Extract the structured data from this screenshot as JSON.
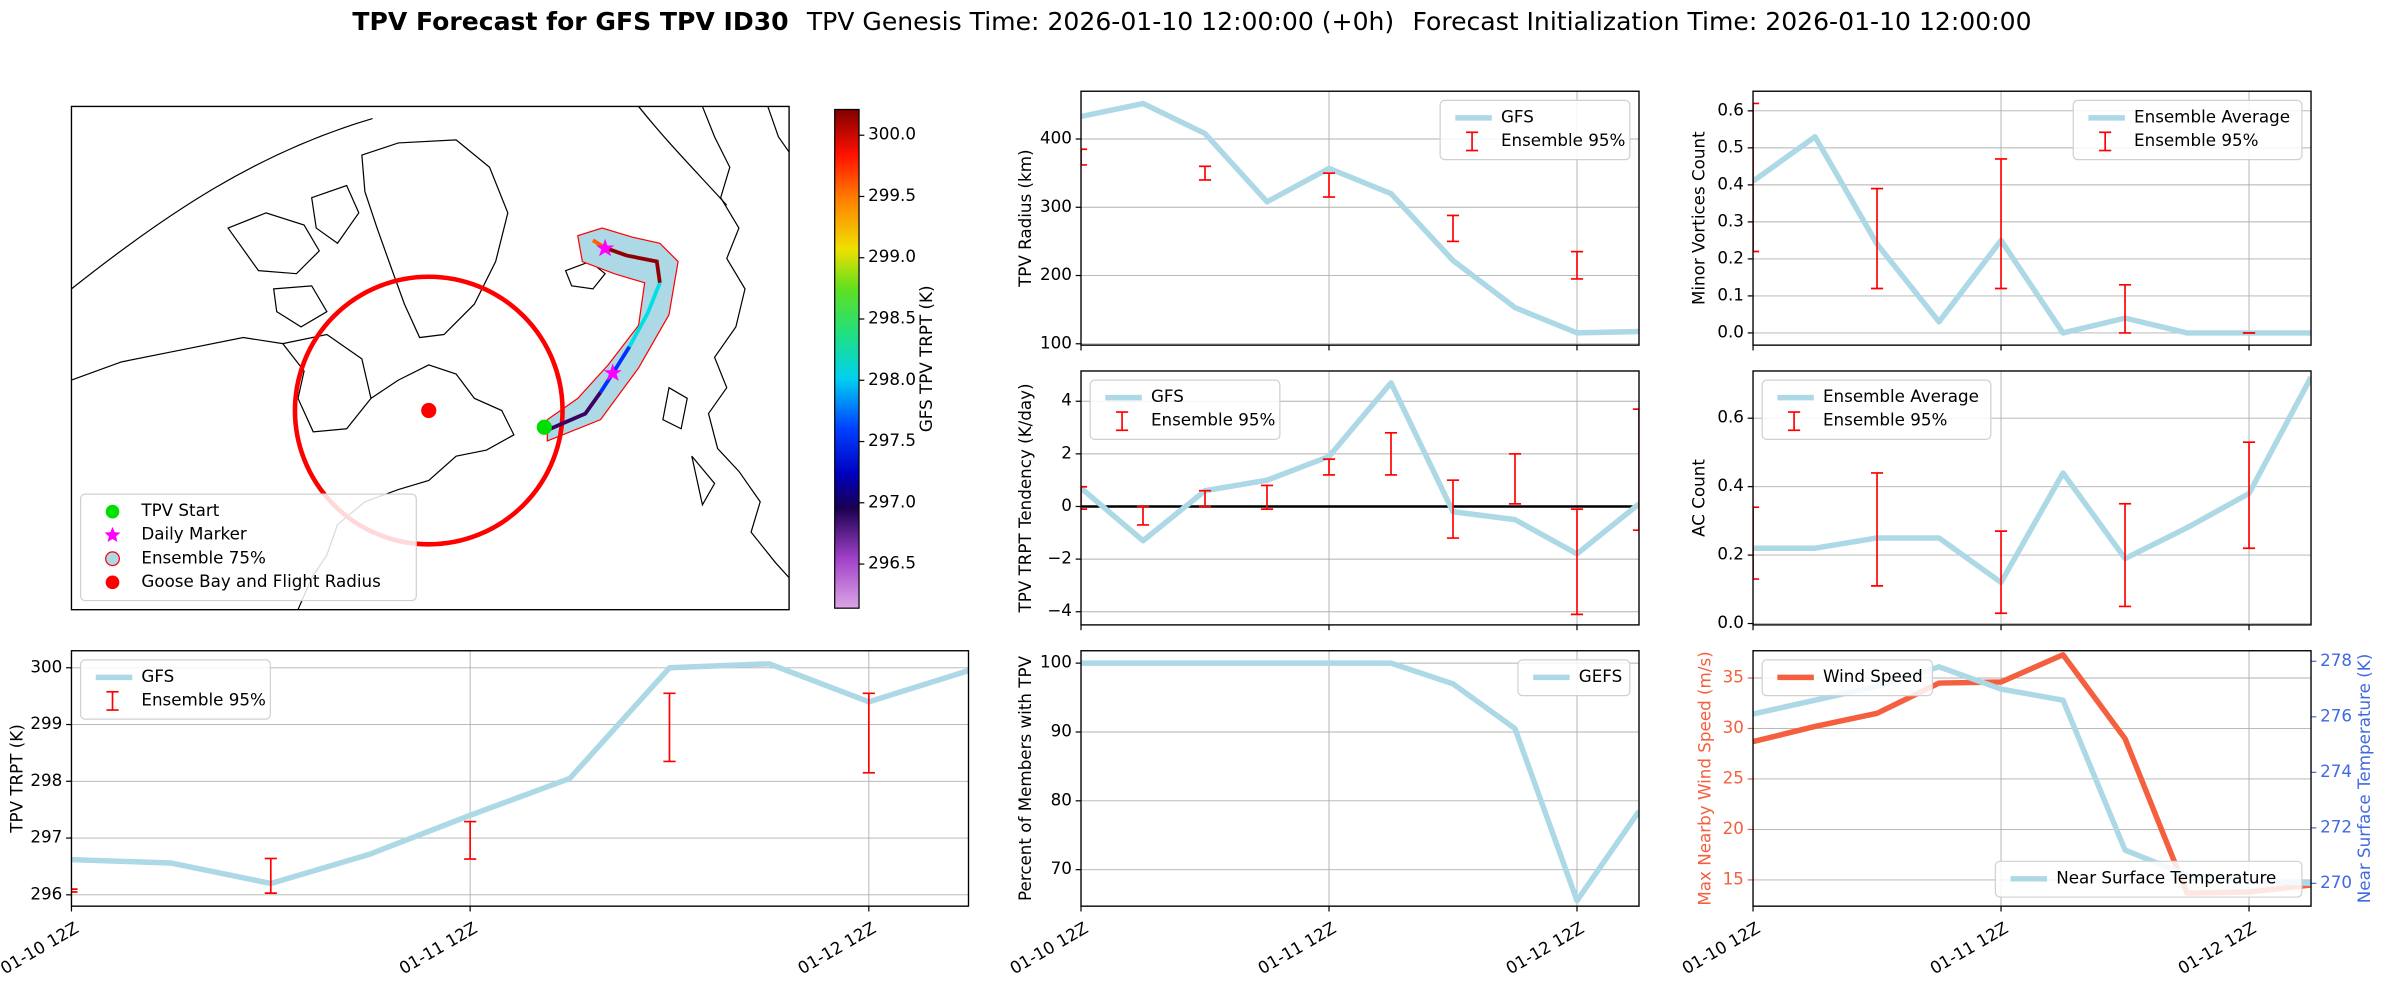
{
  "suptitle": [
    "TPV Forecast for GFS TPV ID30",
    "TPV Genesis Time: 2026-01-10 12:00:00 (+0h)",
    "Forecast Initialization Time: 2026-01-10 12:00:00"
  ],
  "chart_data": [
    {
      "type": "map",
      "legend": "lower left",
      "legend_entries": [
        {
          "name": "TPV Start",
          "color": "#00e000",
          "marker": "circle"
        },
        {
          "name": "Daily Marker",
          "color": "#ff00ff",
          "marker": "star"
        },
        {
          "name": "Ensemble 75%",
          "color": "#add8e6",
          "marker": "patch"
        },
        {
          "name": "Goose Bay and Flight Radius",
          "color": "#ff0000",
          "marker": "circle"
        }
      ],
      "colorbar": {
        "label": "GFS TPV TRPT (K)",
        "lim": [
          296.14,
          300.21
        ],
        "ticks": [
          296.5,
          {
            "value": 297,
            "label": "297.0"
          },
          297.5,
          {
            "value": 298,
            "label": "298.0"
          },
          298.5,
          {
            "value": 299,
            "label": "299.0"
          },
          299.5,
          {
            "value": 300,
            "label": "300.0"
          }
        ]
      }
    },
    {
      "type": "line",
      "ylabel": "TPV Radius (km)",
      "xlim": [
        0,
        54
      ],
      "xticks": [
        0,
        24,
        48
      ],
      "ylim": [
        98,
        470
      ],
      "yticks": [
        100,
        200,
        300,
        400
      ],
      "grid": true,
      "legend": "upper right",
      "series": [
        {
          "name": "GFS",
          "color": "#add8e6",
          "x": [
            0,
            6,
            12,
            18,
            24,
            30,
            36,
            42,
            48,
            54
          ],
          "values": [
            433,
            452,
            408,
            308,
            357,
            320,
            222,
            153,
            116,
            118
          ]
        },
        {
          "name": "Ensemble 95%",
          "type": "errorbar",
          "color": "#ff0000",
          "x": [
            0,
            12,
            24,
            36,
            48
          ],
          "low": [
            362,
            340,
            315,
            250,
            195
          ],
          "high": [
            385,
            360,
            350,
            288,
            235
          ]
        }
      ]
    },
    {
      "type": "line",
      "ylabel": "Minor Vortices Count",
      "xlim": [
        0,
        54
      ],
      "xticks": [
        0,
        24,
        48
      ],
      "ylim": [
        -0.033,
        0.653
      ],
      "yticks": [
        {
          "value": 0,
          "label": "0.0"
        },
        0.1,
        0.2,
        0.3,
        0.4,
        0.5,
        0.6
      ],
      "grid": true,
      "legend": "upper right",
      "series": [
        {
          "name": "Ensemble Average",
          "color": "#add8e6",
          "x": [
            0,
            6,
            12,
            18,
            24,
            30,
            36,
            42,
            48,
            54
          ],
          "values": [
            0.41,
            0.53,
            0.24,
            0.03,
            0.25,
            0.0,
            0.04,
            0.0,
            0.0,
            0.0
          ]
        },
        {
          "name": "Ensemble 95%",
          "type": "errorbar",
          "color": "#ff0000",
          "x": [
            0,
            12,
            24,
            36,
            48
          ],
          "low": [
            0.22,
            0.12,
            0.12,
            0.0,
            0.0
          ],
          "high": [
            0.62,
            0.39,
            0.47,
            0.13,
            0.0
          ]
        }
      ]
    },
    {
      "type": "line",
      "ylabel": "TPV TRPT Tendency (K/day)",
      "xlim": [
        0,
        54
      ],
      "xticks": [
        0,
        24,
        48
      ],
      "ylim": [
        -4.5,
        5.15
      ],
      "yticks": [
        {
          "value": -4,
          "label": "−4"
        },
        {
          "value": -2,
          "label": "−2"
        },
        0,
        2,
        4
      ],
      "grid": true,
      "legend": "upper left",
      "hline": {
        "value": 0,
        "color": "#000000"
      },
      "series": [
        {
          "name": "GFS",
          "color": "#add8e6",
          "x": [
            0,
            6,
            12,
            18,
            24,
            30,
            36,
            42,
            48,
            54
          ],
          "values": [
            0.7,
            -1.3,
            0.6,
            1.0,
            1.9,
            4.7,
            -0.2,
            -0.5,
            -1.8,
            0.1
          ]
        },
        {
          "name": "Ensemble 95%",
          "type": "errorbar",
          "color": "#ff0000",
          "x": [
            0,
            6,
            12,
            18,
            24,
            30,
            36,
            42,
            48,
            54
          ],
          "low": [
            -0.1,
            -0.7,
            0.0,
            -0.1,
            1.2,
            1.2,
            -1.2,
            0.1,
            -4.1,
            -0.9
          ],
          "high": [
            0.75,
            0.0,
            0.6,
            0.8,
            1.8,
            2.8,
            1.0,
            2.0,
            -0.1,
            3.7
          ]
        }
      ]
    },
    {
      "type": "line",
      "ylabel": "AC Count",
      "xlim": [
        0,
        54
      ],
      "xticks": [
        0,
        24,
        48
      ],
      "ylim": [
        -0.004,
        0.738
      ],
      "yticks": [
        {
          "value": 0,
          "label": "0.0"
        },
        0.2,
        0.4,
        0.6
      ],
      "grid": true,
      "legend": "upper left",
      "series": [
        {
          "name": "Ensemble Average",
          "color": "#add8e6",
          "x": [
            0,
            6,
            12,
            18,
            24,
            30,
            36,
            42,
            48,
            54
          ],
          "values": [
            0.22,
            0.22,
            0.25,
            0.25,
            0.12,
            0.44,
            0.19,
            0.28,
            0.38,
            0.72
          ]
        },
        {
          "name": "Ensemble 95%",
          "type": "errorbar",
          "color": "#ff0000",
          "x": [
            0,
            12,
            24,
            36,
            48
          ],
          "low": [
            0.13,
            0.11,
            0.03,
            0.05,
            0.22
          ],
          "high": [
            0.34,
            0.44,
            0.27,
            0.35,
            0.53
          ]
        }
      ]
    },
    {
      "type": "line",
      "ylabel": "TPV TRPT (K)",
      "xlim": [
        0,
        54
      ],
      "xticks": [
        {
          "value": 0,
          "label": "01-10 12Z"
        },
        {
          "value": 24,
          "label": "01-11 12Z"
        },
        {
          "value": 48,
          "label": "01-12 12Z"
        }
      ],
      "ylim": [
        295.8,
        300.3
      ],
      "yticks": [
        296,
        297,
        298,
        299,
        300
      ],
      "grid": true,
      "legend": "upper left",
      "series": [
        {
          "name": "GFS",
          "color": "#add8e6",
          "x": [
            0,
            6,
            12,
            18,
            24,
            30,
            36,
            42,
            48,
            54
          ],
          "values": [
            296.62,
            296.56,
            296.2,
            296.72,
            297.4,
            298.05,
            300.0,
            300.07,
            299.4,
            299.95
          ]
        },
        {
          "name": "Ensemble 95%",
          "type": "errorbar",
          "color": "#ff0000",
          "x": [
            0,
            12,
            24,
            36,
            48
          ],
          "low": [
            296.05,
            296.03,
            296.63,
            298.35,
            298.15
          ],
          "high": [
            296.1,
            296.64,
            297.29,
            299.55,
            299.55
          ]
        }
      ]
    },
    {
      "type": "line",
      "ylabel": "Percent of Members with TPV",
      "xlim": [
        0,
        54
      ],
      "xticks": [
        {
          "value": 0,
          "label": "01-10 12Z"
        },
        {
          "value": 24,
          "label": "01-11 12Z"
        },
        {
          "value": 48,
          "label": "01-12 12Z"
        }
      ],
      "ylim": [
        64.7,
        101.8
      ],
      "yticks": [
        70,
        80,
        90,
        100
      ],
      "grid": true,
      "legend": "upper right",
      "series": [
        {
          "name": "GEFS",
          "color": "#add8e6",
          "x": [
            0,
            6,
            12,
            18,
            24,
            30,
            36,
            42,
            48,
            54
          ],
          "values": [
            100,
            100,
            100,
            100,
            100,
            100,
            97,
            90.5,
            65.5,
            78.5
          ]
        }
      ]
    },
    {
      "type": "line",
      "ylabel": "Max Nearby Wind Speed (m/s)",
      "y2label": "Near Surface Temperature (K)",
      "ycolor": "#f4603f",
      "y2color": "#4169e1",
      "xlim": [
        0,
        54
      ],
      "xticks": [
        {
          "value": 0,
          "label": "01-10 12Z"
        },
        {
          "value": 24,
          "label": "01-11 12Z"
        },
        {
          "value": 48,
          "label": "01-12 12Z"
        }
      ],
      "ylim": [
        12.4,
        37.7
      ],
      "yticks": [
        15,
        20,
        25,
        30,
        35
      ],
      "y2lim": [
        269.18,
        278.38
      ],
      "y2ticks": [
        270,
        272,
        274,
        276,
        278
      ],
      "grid": true,
      "series": [
        {
          "name": "Wind Speed",
          "color": "#f4603f",
          "legend": "upper left",
          "x": [
            0,
            6,
            12,
            18,
            24,
            30,
            36,
            42,
            48,
            54
          ],
          "values": [
            28.7,
            30.2,
            31.5,
            34.5,
            34.6,
            37.3,
            29.0,
            13.7,
            13.8,
            14.5
          ]
        },
        {
          "name": "Near Surface Temperature",
          "color": "#add8e6",
          "axis": "y2",
          "legend": "lower right",
          "x": [
            0,
            6,
            12,
            18,
            24,
            30,
            36,
            42,
            48,
            54
          ],
          "values": [
            276.1,
            276.6,
            277.1,
            277.8,
            277.0,
            276.6,
            271.2,
            270.3,
            270.1,
            270.0
          ]
        }
      ]
    }
  ]
}
